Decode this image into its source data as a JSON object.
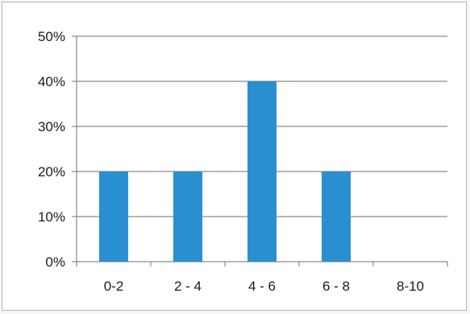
{
  "chart_data": {
    "type": "bar",
    "categories": [
      "0-2",
      "2 - 4",
      "4 - 6",
      "6 - 8",
      "8-10"
    ],
    "values": [
      20,
      20,
      40,
      20,
      0
    ],
    "y_ticks": [
      "0%",
      "10%",
      "20%",
      "30%",
      "40%",
      "50%"
    ],
    "ylim": [
      0,
      50
    ],
    "grid": true,
    "bar_color": "#2a8fd0",
    "grid_color": "#8a8a8a",
    "title": "",
    "xlabel": "",
    "ylabel": ""
  }
}
